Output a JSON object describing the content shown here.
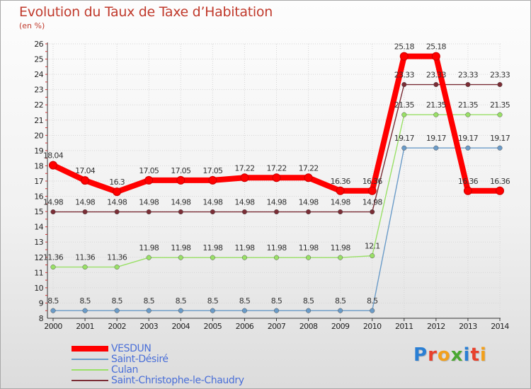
{
  "header": {
    "title": "Evolution du Taux de Taxe d’Habitation",
    "unit": "(en %)"
  },
  "brand": {
    "letters": [
      "P",
      "r",
      "o",
      "x",
      "i",
      "t",
      "i"
    ],
    "colors": [
      "#2a7fd4",
      "#e8412c",
      "#f2a01c",
      "#4aa832",
      "#2a7fd4",
      "#e8412c",
      "#f2a01c"
    ]
  },
  "legend_entries": [
    {
      "label": "VESDUN",
      "color": "#ff0000"
    },
    {
      "label": "Saint-Désiré",
      "color": "#6a9bc8"
    },
    {
      "label": "Culan",
      "color": "#99e066"
    },
    {
      "label": "Saint-Christophe-le-Chaudry",
      "color": "#7a2d35"
    }
  ],
  "chart_data": {
    "type": "line",
    "title": "Evolution du Taux de Taxe d’Habitation",
    "ylabel": "(en %)",
    "xlabel": "",
    "categories": [
      "2000",
      "2001",
      "2002",
      "2003",
      "2004",
      "2005",
      "2006",
      "2007",
      "2008",
      "2009",
      "2010",
      "2011",
      "2012",
      "2013",
      "2014"
    ],
    "ylim": [
      8,
      26
    ],
    "yticks": [
      "8",
      "9",
      "10",
      "11",
      "12",
      "13",
      "14",
      "15",
      "16",
      "17",
      "18",
      "19",
      "20",
      "21",
      "22",
      "23",
      "24",
      "25",
      "26"
    ],
    "grid": true,
    "legend_position": "bottom-left",
    "series": [
      {
        "name": "VESDUN",
        "color": "#ff0000",
        "values": [
          18.04,
          17.04,
          16.3,
          17.05,
          17.05,
          17.05,
          17.22,
          17.22,
          17.22,
          16.36,
          16.36,
          25.18,
          25.18,
          16.36,
          16.36
        ],
        "labels": [
          "18.04",
          "17.04",
          "16.3",
          "17.05",
          "17.05",
          "17.05",
          "17.22",
          "17.22",
          "17.22",
          "16.36",
          "16.36",
          "25.18",
          "25.18",
          "16.36",
          "16.36"
        ]
      },
      {
        "name": "Saint-Désiré",
        "color": "#6a9bc8",
        "values": [
          8.5,
          8.5,
          8.5,
          8.5,
          8.5,
          8.5,
          8.5,
          8.5,
          8.5,
          8.5,
          8.5,
          19.17,
          19.17,
          19.17,
          19.17
        ],
        "labels": [
          "8.5",
          "8.5",
          "8.5",
          "8.5",
          "8.5",
          "8.5",
          "8.5",
          "8.5",
          "8.5",
          "8.5",
          "8.5",
          "19.17",
          "19.17",
          "19.17",
          "19.17"
        ]
      },
      {
        "name": "Culan",
        "color": "#99e066",
        "values": [
          11.36,
          11.36,
          11.36,
          11.98,
          11.98,
          11.98,
          11.98,
          11.98,
          11.98,
          11.98,
          12.1,
          21.35,
          21.35,
          21.35,
          21.35
        ],
        "labels": [
          "11.36",
          "11.36",
          "11.36",
          "11.98",
          "11.98",
          "11.98",
          "11.98",
          "11.98",
          "11.98",
          "11.98",
          "12.1",
          "21.35",
          "21.35",
          "21.35",
          "21.35"
        ]
      },
      {
        "name": "Saint-Christophe-le-Chaudry",
        "color": "#7a2d35",
        "values": [
          14.98,
          14.98,
          14.98,
          14.98,
          14.98,
          14.98,
          14.98,
          14.98,
          14.98,
          14.98,
          14.98,
          23.33,
          23.33,
          23.33,
          23.33
        ],
        "labels": [
          "14.98",
          "14.98",
          "14.98",
          "14.98",
          "14.98",
          "14.98",
          "14.98",
          "14.98",
          "14.98",
          "14.98",
          "14.98",
          "23.33",
          "23.33",
          "23.33",
          "23.33"
        ]
      }
    ]
  }
}
